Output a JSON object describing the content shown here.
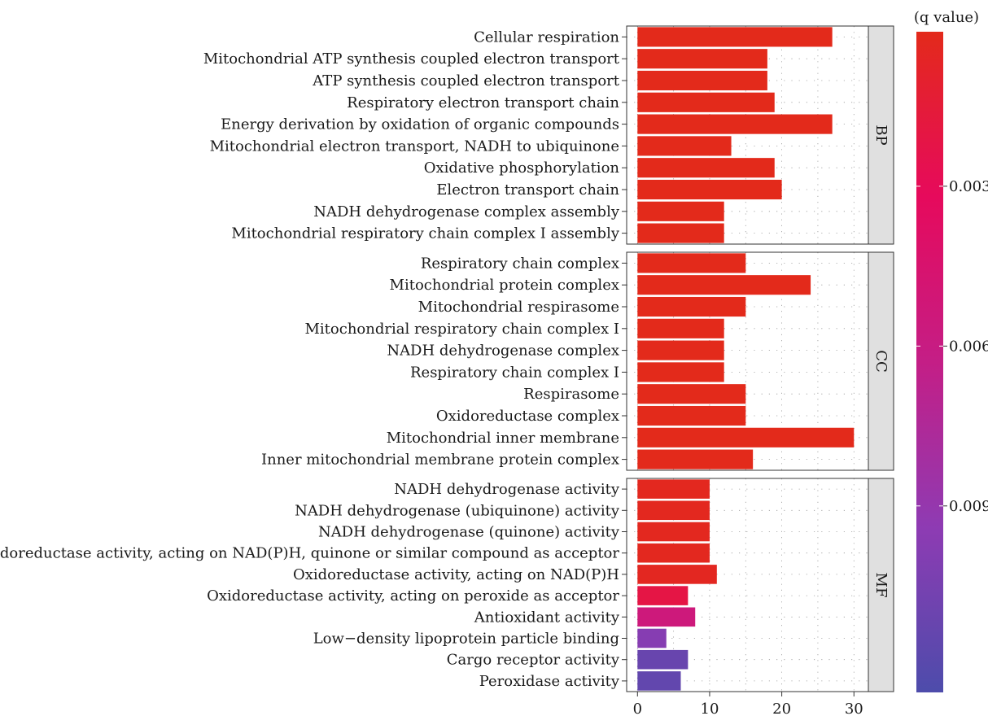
{
  "chart_data": {
    "type": "bar",
    "orientation": "horizontal",
    "facets": [
      {
        "name": "BP",
        "categories": [
          "Cellular respiration",
          "Mitochondrial ATP synthesis coupled electron transport",
          "ATP synthesis coupled electron transport",
          "Respiratory electron transport chain",
          "Energy derivation by oxidation of organic compounds",
          "Mitochondrial electron transport, NADH to ubiquinone",
          "Oxidative phosphorylation",
          "Electron transport chain",
          "NADH dehydrogenase complex assembly",
          "Mitochondrial respiratory chain complex I assembly"
        ],
        "values": [
          27,
          18,
          18,
          19,
          27,
          13,
          19,
          20,
          12,
          12
        ],
        "q_values": [
          0.0001,
          0.0001,
          0.0001,
          0.0001,
          0.0001,
          0.0001,
          0.0001,
          0.0001,
          0.0001,
          0.0001
        ]
      },
      {
        "name": "CC",
        "categories": [
          "Respiratory chain complex",
          "Mitochondrial protein complex",
          "Mitochondrial respirasome",
          "Mitochondrial respiratory chain complex I",
          "NADH dehydrogenase complex",
          "Respiratory chain complex I",
          "Respirasome",
          "Oxidoreductase complex",
          "Mitochondrial inner membrane",
          "Inner mitochondrial membrane protein complex"
        ],
        "values": [
          15,
          24,
          15,
          12,
          12,
          12,
          15,
          15,
          30,
          16
        ],
        "q_values": [
          0.0001,
          0.0001,
          0.0001,
          0.0001,
          0.0001,
          0.0001,
          0.0001,
          0.0001,
          0.0001,
          0.0001
        ]
      },
      {
        "name": "MF",
        "categories": [
          "NADH dehydrogenase activity",
          "NADH dehydrogenase (ubiquinone) activity",
          "NADH dehydrogenase (quinone) activity",
          "Oxidoreductase activity, acting on NAD(P)H, quinone or similar compound as acceptor",
          "Oxidoreductase activity, acting on NAD(P)H",
          "Oxidoreductase activity, acting on peroxide as acceptor",
          "Antioxidant activity",
          "Low−density lipoprotein particle binding",
          "Cargo receptor activity",
          "Peroxidase activity"
        ],
        "values": [
          10,
          10,
          10,
          10,
          11,
          7,
          8,
          4,
          7,
          6
        ],
        "q_values": [
          0.0003,
          0.0003,
          0.0003,
          0.0003,
          0.0004,
          0.0021,
          0.0055,
          0.0098,
          0.0112,
          0.0115
        ]
      }
    ],
    "x_ticks": [
      0,
      10,
      20,
      30
    ],
    "xlim": [
      -1.5,
      32
    ],
    "legend": {
      "title": "(q value)",
      "ticks": [
        "0.003",
        "0.006",
        "0.009"
      ],
      "tick_values": [
        0.003,
        0.006,
        0.009
      ],
      "range": [
        0.0001,
        0.0125
      ],
      "colors": [
        "#e32a1b",
        "#e60a5c",
        "#c41e86",
        "#8e3bb3",
        "#4d4cab"
      ],
      "placement": "right"
    },
    "grid": "dotted",
    "strip_color": "#e0e0e0",
    "bar_colors": "by q value"
  }
}
